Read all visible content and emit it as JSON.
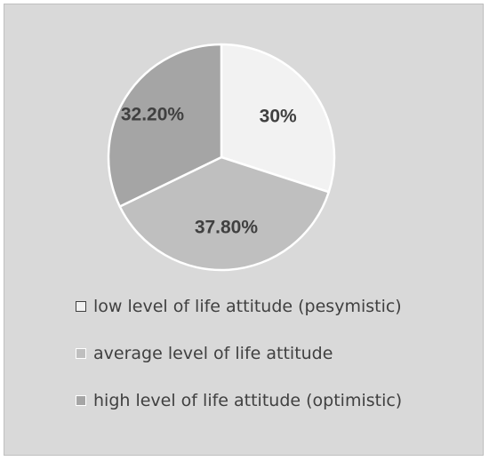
{
  "chart_data": {
    "type": "pie",
    "title": "",
    "categories": [
      "low level of life attitude (pesymistic)",
      "average level of life attitude",
      "high level of life attitude (optimistic)"
    ],
    "values": [
      30,
      37.8,
      32.2
    ],
    "value_labels": [
      "30%",
      "37.80%",
      "32.20%"
    ],
    "colors": [
      "#f2f2f2",
      "#bfbfbf",
      "#a5a5a5"
    ],
    "start_angle": "12 o'clock",
    "direction": "clockwise",
    "legend_position": "bottom",
    "legend_entries": [
      "low level of life attitude (pesymistic)",
      "average level of life attitude",
      "high level of life attitude (optimistic)"
    ]
  },
  "colors": {
    "background": "#d9d9d9",
    "border": "#bfbfbf",
    "text": "#404040",
    "slice_outline": "#ffffff"
  }
}
